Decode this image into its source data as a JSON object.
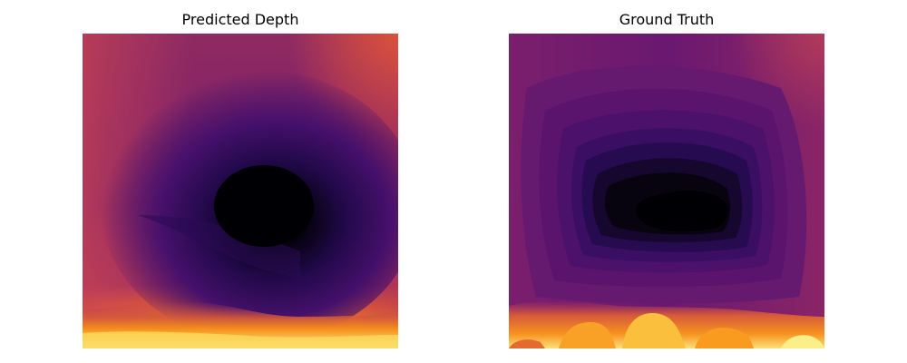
{
  "panels": [
    {
      "title": "Predicted Depth",
      "colormap": "inferno"
    },
    {
      "title": "Ground Truth",
      "colormap": "inferno"
    }
  ],
  "colors": {
    "background": "#ffffff",
    "inferno_black": "#000004",
    "inferno_purple": "#57106e",
    "inferno_magenta": "#8a226a",
    "inferno_red": "#d44842",
    "inferno_orange": "#f98e09",
    "inferno_yellow": "#fcffa4"
  }
}
